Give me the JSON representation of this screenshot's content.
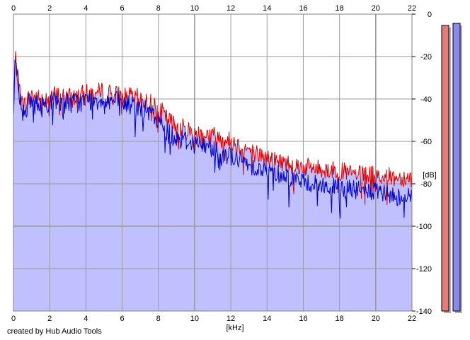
{
  "chart_data": {
    "type": "area",
    "xlabel": "[kHz]",
    "ylabel": "[dB]",
    "xlim": [
      0,
      22
    ],
    "ylim": [
      -140,
      0
    ],
    "x_ticks": [
      "0",
      "2",
      "4",
      "6",
      "8",
      "10",
      "12",
      "14",
      "16",
      "18",
      "20",
      "22"
    ],
    "y_ticks": [
      "0",
      "-20",
      "-40",
      "-60",
      "-80",
      "-100",
      "-120",
      "-140"
    ],
    "grid": true,
    "series": [
      {
        "color": "#dd0000",
        "x": [
          0,
          0.1,
          0.3,
          0.5,
          1,
          1.5,
          2,
          3,
          4,
          5,
          6,
          7,
          8,
          8.5,
          9,
          10,
          11,
          12,
          13,
          14,
          15,
          16,
          17,
          18,
          19,
          20,
          21,
          22
        ],
        "y": [
          -45,
          -20,
          -34,
          -44,
          -38,
          -41,
          -38,
          -40,
          -38,
          -37,
          -39,
          -40,
          -44,
          -50,
          -53,
          -56,
          -57,
          -60,
          -64,
          -68,
          -70,
          -72,
          -73,
          -74,
          -76,
          -76,
          -77,
          -77
        ]
      },
      {
        "color": "#0000cc",
        "x": [
          0,
          0.1,
          0.3,
          0.5,
          1,
          1.5,
          2,
          3,
          4,
          5,
          6,
          7,
          8,
          8.5,
          9,
          10,
          11,
          12,
          13,
          14,
          15,
          16,
          17,
          18,
          19,
          20,
          21,
          22
        ],
        "y": [
          -47,
          -18,
          -35,
          -46,
          -41,
          -44,
          -41,
          -42,
          -41,
          -40,
          -42,
          -44,
          -50,
          -56,
          -58,
          -61,
          -63,
          -67,
          -71,
          -74,
          -76,
          -79,
          -81,
          -82,
          -83,
          -84,
          -86,
          -86
        ]
      }
    ],
    "fill_color": "#c0c0ff",
    "level_meters": [
      {
        "color": "#e67a7a",
        "value_db": -6
      },
      {
        "color": "#8a8aee",
        "value_db": -5
      }
    ]
  },
  "credit": "created by Hub Audio Tools"
}
